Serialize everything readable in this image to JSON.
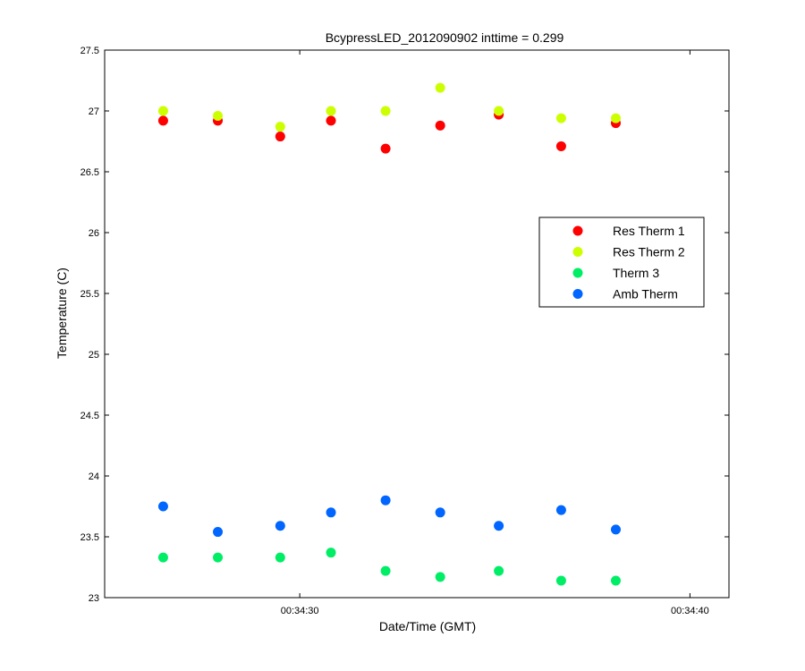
{
  "chart_data": {
    "type": "scatter",
    "title": "BcypressLED_2012090902 inttime = 0.299",
    "xlabel": "Date/Time (GMT)",
    "ylabel": "Temperature (C)",
    "xlim": [
      "00:34:25",
      "00:34:41"
    ],
    "ylim": [
      23,
      27.5
    ],
    "x_ticks": [
      "00:34:30",
      "00:34:40"
    ],
    "y_ticks": [
      23,
      23.5,
      24,
      24.5,
      25,
      25.5,
      26,
      26.5,
      27,
      27.5
    ],
    "y_tick_labels": [
      "23",
      "23.5",
      "24",
      "24.5",
      "25",
      "25.5",
      "26",
      "26.5",
      "27",
      "27.5"
    ],
    "grid": false,
    "legend_position": "right",
    "x": [
      "00:34:26.5",
      "00:34:27.9",
      "00:34:29.5",
      "00:34:30.8",
      "00:34:32.2",
      "00:34:33.6",
      "00:34:35.1",
      "00:34:36.7",
      "00:34:38.1"
    ],
    "series": [
      {
        "name": "Res Therm 1",
        "color": "#ff0000",
        "values": [
          26.92,
          26.92,
          26.79,
          26.92,
          26.69,
          26.88,
          26.97,
          26.71,
          26.9
        ]
      },
      {
        "name": "Res Therm 2",
        "color": "#ccff00",
        "values": [
          27.0,
          26.96,
          26.87,
          27.0,
          27.0,
          27.19,
          27.0,
          26.94,
          26.94
        ]
      },
      {
        "name": "Therm 3",
        "color": "#00ee66",
        "values": [
          23.33,
          23.33,
          23.33,
          23.37,
          23.22,
          23.17,
          23.22,
          23.14,
          23.14
        ]
      },
      {
        "name": "Amb Therm",
        "color": "#0066ff",
        "values": [
          23.75,
          23.54,
          23.59,
          23.7,
          23.8,
          23.7,
          23.59,
          23.72,
          23.56
        ]
      }
    ]
  }
}
